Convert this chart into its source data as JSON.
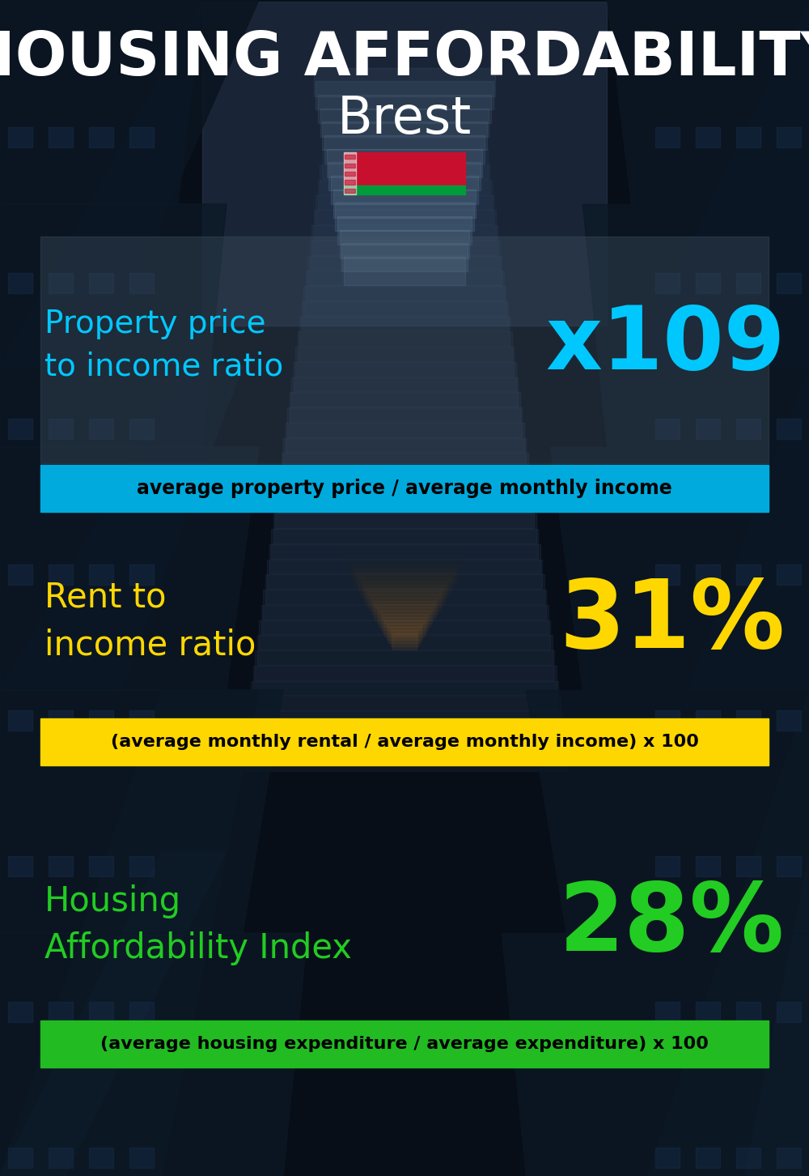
{
  "title_line1": "HOUSING AFFORDABILITY",
  "title_line2": "Brest",
  "bg_color": "#080e18",
  "title_color": "#ffffff",
  "city_color": "#ffffff",
  "section1_label": "Property price\nto income ratio",
  "section1_value": "x109",
  "section1_label_color": "#00c8ff",
  "section1_value_color": "#00c8ff",
  "section1_formula": "average property price / average monthly income",
  "section1_box_color": "#00aadd",
  "section2_label": "Rent to\nincome ratio",
  "section2_value": "31%",
  "section2_label_color": "#ffd700",
  "section2_value_color": "#ffd700",
  "section2_formula": "(average monthly rental / average monthly income) x 100",
  "section2_box_color": "#ffd700",
  "section3_label": "Housing\nAffordability Index",
  "section3_value": "28%",
  "section3_label_color": "#22cc22",
  "section3_value_color": "#22cc22",
  "section3_formula": "(average housing expenditure / average expenditure) x 100",
  "section3_box_color": "#22bb22",
  "panel_bg": "#1a2535",
  "panel_alpha": 0.5,
  "formula_text_color": "#000000",
  "flag_red": "#c8102e",
  "flag_green": "#009b3a",
  "flag_white": "#ffffff"
}
